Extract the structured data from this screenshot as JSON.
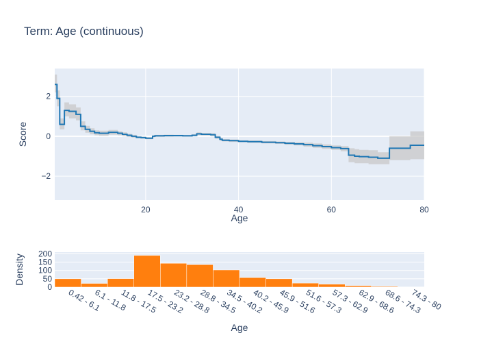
{
  "title": "Term: Age (continuous)",
  "colors": {
    "plot_bg": "#e5ecf6",
    "grid": "#ffffff",
    "text": "#2a3f5f",
    "line": "#1f77b4",
    "band": "#c8c8c8",
    "bar": "#ff7f0e"
  },
  "chart_data": [
    {
      "type": "line",
      "line_shape": "step",
      "xlabel": "Age",
      "ylabel": "Score",
      "xlim": [
        0.42,
        80
      ],
      "ylim": [
        -3.2,
        3.4
      ],
      "xticks": [
        20,
        40,
        60,
        80
      ],
      "yticks": [
        -2,
        0,
        2
      ],
      "grid": true,
      "series": [
        {
          "x": [
            0.42,
            0.9,
            1.5,
            2.5,
            3.5,
            5.0,
            6.0,
            7.0,
            8.0,
            9.0,
            10.0,
            11.0,
            12.0,
            14.0,
            15.0,
            16.0,
            17.0,
            18.0,
            19.0,
            20.0,
            21.5,
            22.0,
            24.0,
            26.0,
            28.0,
            30.0,
            31.0,
            32.0,
            34.0,
            35.0,
            36.0,
            36.5,
            38.0,
            40.0,
            42.0,
            45.0,
            48.0,
            50.0,
            52.0,
            54.0,
            56.0,
            58.0,
            60.0,
            62.0,
            63.7,
            65.0,
            66.0,
            68.0,
            70.0,
            72.5,
            77.0,
            80.0
          ],
          "y": [
            2.6,
            1.9,
            0.6,
            1.3,
            1.25,
            1.1,
            0.5,
            0.35,
            0.25,
            0.18,
            0.15,
            0.15,
            0.2,
            0.15,
            0.1,
            0.05,
            0.0,
            -0.05,
            -0.07,
            -0.1,
            0.0,
            0.02,
            0.03,
            0.03,
            0.02,
            0.05,
            0.12,
            0.1,
            0.08,
            -0.05,
            -0.15,
            -0.2,
            -0.22,
            -0.25,
            -0.27,
            -0.3,
            -0.32,
            -0.35,
            -0.38,
            -0.42,
            -0.47,
            -0.52,
            -0.57,
            -0.62,
            -0.95,
            -1.0,
            -1.02,
            -1.05,
            -1.1,
            -0.6,
            -0.45,
            -0.45
          ],
          "lower": [
            2.2,
            1.5,
            0.35,
            1.0,
            0.9,
            0.8,
            0.3,
            0.18,
            0.1,
            0.05,
            0.02,
            0.02,
            0.08,
            0.05,
            0.0,
            -0.03,
            -0.07,
            -0.1,
            -0.12,
            -0.15,
            -0.05,
            -0.03,
            -0.02,
            -0.01,
            -0.02,
            0.0,
            0.05,
            0.04,
            0.0,
            -0.12,
            -0.22,
            -0.26,
            -0.28,
            -0.3,
            -0.33,
            -0.36,
            -0.38,
            -0.42,
            -0.46,
            -0.52,
            -0.58,
            -0.63,
            -0.68,
            -0.75,
            -1.3,
            -1.35,
            -1.35,
            -1.4,
            -1.4,
            -1.2,
            -1.15,
            -1.15
          ],
          "upper": [
            3.1,
            2.3,
            0.9,
            1.7,
            1.6,
            1.45,
            0.75,
            0.52,
            0.4,
            0.3,
            0.28,
            0.28,
            0.32,
            0.25,
            0.2,
            0.13,
            0.07,
            0.0,
            -0.02,
            -0.05,
            0.05,
            0.07,
            0.08,
            0.07,
            0.06,
            0.1,
            0.2,
            0.17,
            0.15,
            0.02,
            -0.08,
            -0.14,
            -0.16,
            -0.2,
            -0.21,
            -0.24,
            -0.26,
            -0.28,
            -0.3,
            -0.32,
            -0.36,
            -0.41,
            -0.46,
            -0.49,
            -0.6,
            -0.65,
            -0.68,
            -0.7,
            -0.8,
            0.0,
            0.25,
            0.25
          ]
        }
      ]
    },
    {
      "type": "bar",
      "xlabel": "Age",
      "ylabel": "Density",
      "ylim": [
        0,
        210
      ],
      "yticks": [
        0,
        50,
        100,
        150,
        200
      ],
      "categories": [
        "0.42 - 6.1",
        "6.1 - 11.8",
        "11.8 - 17.5",
        "17.5 - 23.2",
        "23.2 - 28.8",
        "28.8 - 34.5",
        "34.5 - 40.2",
        "40.2 - 45.9",
        "45.9 - 51.6",
        "51.6 - 57.3",
        "57.3 - 62.9",
        "62.9 - 68.6",
        "68.6 - 74.3",
        "74.3 - 80"
      ],
      "values": [
        50,
        22,
        51,
        190,
        143,
        135,
        103,
        57,
        50,
        24,
        17,
        8,
        4,
        1
      ]
    }
  ]
}
